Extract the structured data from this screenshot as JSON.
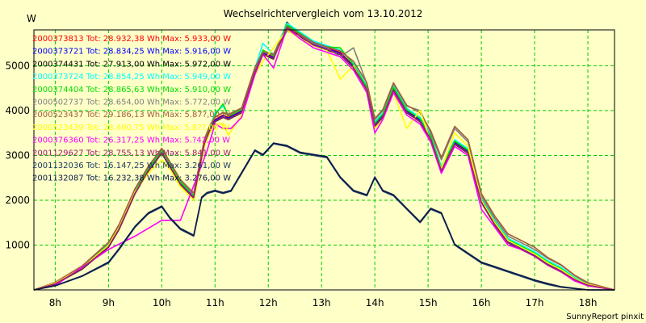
{
  "chart_data": {
    "type": "line",
    "title": "Wechselrichtervergleich vom 13.10.2012",
    "ylabel": "W",
    "credit": "SunnyReport pinxit",
    "x_ticks": [
      "8h",
      "9h",
      "10h",
      "11h",
      "12h",
      "13h",
      "14h",
      "15h",
      "16h",
      "17h",
      "18h"
    ],
    "y_ticks": [
      1000,
      2000,
      3000,
      4000,
      5000
    ],
    "xlim": [
      7.6,
      18.5
    ],
    "ylim": [
      0,
      5800
    ],
    "grid": true,
    "legend_position": "top-left",
    "series": [
      {
        "name": "2000373813 Tot: 28.932,38 Wh Max: 5.933,00 W",
        "color": "#ff0000",
        "x": [
          7.6,
          8.0,
          8.5,
          9.0,
          9.2,
          9.5,
          9.75,
          10.0,
          10.15,
          10.35,
          10.6,
          10.8,
          10.9,
          11.0,
          11.15,
          11.25,
          11.5,
          11.75,
          11.9,
          12.1,
          12.35,
          12.6,
          12.85,
          13.1,
          13.35,
          13.6,
          13.85,
          14.0,
          14.15,
          14.35,
          14.6,
          14.85,
          15.05,
          15.25,
          15.5,
          15.75,
          16.0,
          16.25,
          16.5,
          16.75,
          17.0,
          17.25,
          17.5,
          17.75,
          18.0,
          18.5
        ],
        "y": [
          0,
          150,
          500,
          1000,
          1400,
          2200,
          2700,
          3100,
          2800,
          2400,
          2100,
          3300,
          3600,
          3800,
          3900,
          3850,
          4000,
          4900,
          5300,
          5200,
          5900,
          5700,
          5500,
          5400,
          5300,
          5000,
          4500,
          3700,
          3900,
          4500,
          4000,
          3800,
          3400,
          2700,
          3300,
          3100,
          2000,
          1500,
          1100,
          950,
          800,
          600,
          450,
          250,
          120,
          0
        ]
      },
      {
        "name": "2000373721 Tot: 28.834,25 Wh Max: 5.916,00 W",
        "color": "#0000ff",
        "x": [
          7.6,
          8.0,
          8.5,
          9.0,
          9.2,
          9.5,
          9.75,
          10.0,
          10.15,
          10.35,
          10.6,
          10.8,
          10.9,
          11.0,
          11.15,
          11.25,
          11.5,
          11.75,
          11.9,
          12.1,
          12.35,
          12.6,
          12.85,
          13.1,
          13.35,
          13.6,
          13.85,
          14.0,
          14.15,
          14.35,
          14.6,
          14.85,
          15.05,
          15.25,
          15.5,
          15.75,
          16.0,
          16.25,
          16.5,
          16.75,
          17.0,
          17.25,
          17.5,
          17.75,
          18.0,
          18.5
        ],
        "y": [
          0,
          140,
          480,
          980,
          1380,
          2180,
          2680,
          3080,
          2780,
          2380,
          2080,
          3280,
          3580,
          3780,
          3880,
          3830,
          3980,
          4880,
          5280,
          5180,
          5880,
          5680,
          5480,
          5380,
          5280,
          4980,
          4480,
          3680,
          3880,
          4480,
          3980,
          3780,
          3380,
          2680,
          3280,
          3080,
          1980,
          1480,
          1080,
          930,
          780,
          580,
          430,
          240,
          110,
          0
        ]
      },
      {
        "name": "2000374431 Tot: 27.913,00 Wh Max: 5.972,00 W",
        "color": "#000000",
        "x": [
          7.6,
          8.0,
          8.5,
          9.0,
          9.2,
          9.5,
          9.75,
          10.0,
          10.15,
          10.35,
          10.6,
          10.8,
          10.9,
          11.0,
          11.15,
          11.25,
          11.5,
          11.75,
          11.9,
          12.1,
          12.35,
          12.6,
          12.85,
          13.1,
          13.35,
          13.6,
          13.85,
          14.0,
          14.15,
          14.35,
          14.6,
          14.85,
          15.05,
          15.25,
          15.5,
          15.75,
          16.0,
          16.25,
          16.5,
          16.75,
          17.0,
          17.25,
          17.5,
          17.75,
          18.0,
          18.5
        ],
        "y": [
          0,
          130,
          460,
          950,
          1350,
          2150,
          2650,
          3050,
          2750,
          2350,
          2050,
          3250,
          3550,
          3750,
          3850,
          3800,
          3950,
          4850,
          5250,
          5150,
          5970,
          5650,
          5450,
          5350,
          5250,
          4950,
          4450,
          3650,
          3850,
          4450,
          3950,
          3750,
          3350,
          2650,
          3250,
          3050,
          1950,
          1450,
          1050,
          900,
          750,
          550,
          400,
          220,
          100,
          0
        ]
      },
      {
        "name": "2000373724 Tot: 28.854,25 Wh Max: 5.949,00 W",
        "color": "#00ffff",
        "x": [
          7.6,
          8.0,
          8.5,
          9.0,
          9.2,
          9.5,
          9.75,
          10.0,
          10.15,
          10.35,
          10.6,
          10.8,
          10.9,
          11.0,
          11.15,
          11.25,
          11.5,
          11.75,
          11.9,
          12.1,
          12.35,
          12.6,
          12.85,
          13.1,
          13.35,
          13.6,
          13.85,
          14.0,
          14.15,
          14.35,
          14.6,
          14.85,
          15.05,
          15.25,
          15.5,
          15.75,
          16.0,
          16.25,
          16.5,
          16.75,
          17.0,
          17.25,
          17.5,
          17.75,
          18.0,
          18.5
        ],
        "y": [
          0,
          150,
          510,
          1010,
          1410,
          2210,
          2710,
          3110,
          2810,
          2410,
          2110,
          3310,
          3610,
          3950,
          4100,
          3900,
          4050,
          4950,
          5500,
          5250,
          5949,
          5750,
          5550,
          5450,
          5350,
          5050,
          4550,
          3750,
          3950,
          4550,
          4050,
          3850,
          3450,
          2750,
          3350,
          3150,
          2050,
          1550,
          1150,
          1000,
          850,
          650,
          500,
          280,
          130,
          0
        ]
      },
      {
        "name": "2000374404 Tot: 28.865,63 Wh Max: 5.910,00 W",
        "color": "#00e000",
        "x": [
          7.6,
          8.0,
          8.5,
          9.0,
          9.2,
          9.5,
          9.75,
          10.0,
          10.15,
          10.35,
          10.6,
          10.8,
          10.9,
          11.0,
          11.15,
          11.25,
          11.5,
          11.75,
          11.9,
          12.1,
          12.35,
          12.6,
          12.85,
          13.1,
          13.35,
          13.6,
          13.85,
          14.0,
          14.15,
          14.35,
          14.6,
          14.85,
          15.05,
          15.25,
          15.5,
          15.75,
          16.0,
          16.25,
          16.5,
          16.75,
          17.0,
          17.25,
          17.5,
          17.75,
          18.0,
          18.5
        ],
        "y": [
          0,
          145,
          505,
          1005,
          1405,
          2205,
          2705,
          3105,
          2805,
          2405,
          2105,
          3305,
          3605,
          3900,
          4150,
          3880,
          4020,
          4920,
          5350,
          5220,
          5910,
          5720,
          5520,
          5420,
          5400,
          5020,
          4520,
          3720,
          3920,
          4520,
          4020,
          3820,
          3420,
          2720,
          3320,
          3120,
          2020,
          1520,
          1120,
          970,
          820,
          620,
          470,
          260,
          120,
          0
        ]
      },
      {
        "name": "2000502737 Tot: 28.654,00 Wh Max: 5.772,00 W",
        "color": "#808080",
        "x": [
          7.6,
          8.0,
          8.5,
          9.0,
          9.2,
          9.5,
          9.75,
          10.0,
          10.15,
          10.35,
          10.6,
          10.8,
          10.9,
          11.0,
          11.15,
          11.25,
          11.5,
          11.75,
          11.9,
          12.1,
          12.35,
          12.6,
          12.85,
          13.1,
          13.35,
          13.6,
          13.85,
          14.0,
          14.15,
          14.35,
          14.6,
          14.85,
          15.05,
          15.25,
          15.5,
          15.75,
          16.0,
          16.25,
          16.5,
          16.75,
          17.0,
          17.25,
          17.5,
          17.75,
          18.0,
          18.5
        ],
        "y": [
          0,
          160,
          520,
          1050,
          1450,
          2250,
          2750,
          3150,
          2850,
          2450,
          2150,
          3350,
          3650,
          3850,
          3950,
          3900,
          4050,
          4950,
          5300,
          5250,
          5772,
          5680,
          5500,
          5400,
          5200,
          5400,
          4600,
          3800,
          4000,
          4600,
          4100,
          4000,
          3500,
          2900,
          3600,
          3300,
          2100,
          1600,
          1200,
          1050,
          900,
          700,
          550,
          320,
          150,
          0
        ]
      },
      {
        "name": "2000523437 Tot: 29.186,13 Wh Max: 5.87?,00 W",
        "color": "#a0603c",
        "x": [
          7.6,
          8.0,
          8.5,
          9.0,
          9.2,
          9.5,
          9.75,
          10.0,
          10.15,
          10.35,
          10.6,
          10.8,
          10.9,
          11.0,
          11.15,
          11.25,
          11.5,
          11.75,
          11.9,
          12.1,
          12.35,
          12.6,
          12.85,
          13.1,
          13.35,
          13.6,
          13.85,
          14.0,
          14.15,
          14.35,
          14.6,
          14.85,
          15.05,
          15.25,
          15.5,
          15.75,
          16.0,
          16.25,
          16.5,
          16.75,
          17.0,
          17.25,
          17.5,
          17.75,
          18.0,
          18.5
        ],
        "y": [
          0,
          170,
          530,
          1060,
          1460,
          2260,
          2760,
          3160,
          2860,
          2460,
          2160,
          3360,
          3660,
          3860,
          3960,
          3910,
          4060,
          4960,
          5310,
          5260,
          5870,
          5700,
          5520,
          5420,
          5330,
          5100,
          4620,
          3820,
          4020,
          4620,
          4120,
          3950,
          3550,
          2950,
          3650,
          3350,
          2150,
          1650,
          1250,
          1100,
          950,
          720,
          560,
          330,
          160,
          0
        ]
      },
      {
        "name": "2000523439 Tot: 28.400,75 Wh Max: 5.8??,00 W",
        "color": "#ffff00",
        "x": [
          7.6,
          8.0,
          8.5,
          9.0,
          9.2,
          9.5,
          9.75,
          10.0,
          10.15,
          10.35,
          10.6,
          10.8,
          10.9,
          11.0,
          11.15,
          11.25,
          11.5,
          11.75,
          11.9,
          12.1,
          12.35,
          12.6,
          12.85,
          13.1,
          13.35,
          13.6,
          13.85,
          14.0,
          14.15,
          14.35,
          14.6,
          14.85,
          15.05,
          15.25,
          15.5,
          15.75,
          16.0,
          16.25,
          16.5,
          16.75,
          17.0,
          17.25,
          17.5,
          17.75,
          18.0,
          18.5
        ],
        "y": [
          0,
          150,
          490,
          990,
          1390,
          2190,
          2600,
          2900,
          2700,
          2300,
          2000,
          3200,
          3500,
          3700,
          3700,
          3450,
          3900,
          4800,
          5100,
          5400,
          5800,
          5600,
          5450,
          5350,
          4700,
          5000,
          4400,
          3600,
          3800,
          4400,
          3600,
          4000,
          3300,
          2700,
          3500,
          3200,
          2000,
          1500,
          1100,
          950,
          800,
          600,
          450,
          250,
          120,
          0
        ]
      },
      {
        "name": "2000376360 Tot: 26.317,25 Wh Max: 5.?42,00 W",
        "color": "#ff00ff",
        "x": [
          7.6,
          8.0,
          8.5,
          9.0,
          9.5,
          10.0,
          10.35,
          10.85,
          11.0,
          11.15,
          11.3,
          11.5,
          11.75,
          11.9,
          12.1,
          12.35,
          12.6,
          12.85,
          13.1,
          13.35,
          13.6,
          13.85,
          14.0,
          14.15,
          14.35,
          14.6,
          14.85,
          15.05,
          15.25,
          15.5,
          15.75,
          16.0,
          16.25,
          16.5,
          16.75,
          17.0,
          17.25,
          17.5,
          17.75,
          18.0,
          18.5
        ],
        "y": [
          0,
          100,
          500,
          900,
          1200,
          1550,
          1550,
          3100,
          3700,
          3600,
          3600,
          3850,
          4800,
          5250,
          4950,
          5842,
          5600,
          5400,
          5300,
          5200,
          4900,
          4400,
          3500,
          3800,
          4400,
          3900,
          3700,
          3300,
          2600,
          3200,
          3000,
          1800,
          1400,
          1000,
          900,
          750,
          550,
          400,
          200,
          90,
          0
        ]
      },
      {
        "name": "2001129627 Tot: 28.755,13 Wh Max: 5.841,00 W",
        "color": "#a02070",
        "x": [
          7.6,
          8.0,
          8.5,
          9.0,
          9.2,
          9.5,
          9.75,
          10.0,
          10.15,
          10.35,
          10.6,
          10.8,
          10.9,
          11.0,
          11.15,
          11.25,
          11.5,
          11.75,
          11.9,
          12.1,
          12.35,
          12.6,
          12.85,
          13.1,
          13.35,
          13.6,
          13.85,
          14.0,
          14.15,
          14.35,
          14.6,
          14.85,
          15.05,
          15.25,
          15.5,
          15.75,
          16.0,
          16.25,
          16.5,
          16.75,
          17.0,
          17.25,
          17.5,
          17.75,
          18.0,
          18.5
        ],
        "y": [
          0,
          135,
          470,
          960,
          1360,
          2160,
          2660,
          3060,
          2760,
          2360,
          2060,
          3260,
          3560,
          3760,
          3860,
          3810,
          3960,
          4860,
          5260,
          5160,
          5841,
          5660,
          5460,
          5360,
          5260,
          4960,
          4460,
          3660,
          3860,
          4460,
          3960,
          3760,
          3360,
          2660,
          3260,
          3060,
          1960,
          1460,
          1060,
          910,
          760,
          560,
          410,
          230,
          105,
          0
        ]
      },
      {
        "name": "2001132036 Tot: 16.147,25 Wh Max: 3.261,00 W",
        "color": "#1f3a60",
        "x": [
          7.6,
          8.0,
          8.5,
          9.0,
          9.2,
          9.5,
          9.75,
          10.0,
          10.15,
          10.35,
          10.6,
          10.75,
          10.85,
          11.0,
          11.15,
          11.3,
          11.5,
          11.75,
          11.9,
          12.1,
          12.35,
          12.6,
          12.85,
          13.1,
          13.35,
          13.6,
          13.85,
          14.0,
          14.15,
          14.35,
          14.6,
          14.85,
          15.05,
          15.25,
          15.5,
          15.75,
          16.0,
          16.25,
          16.5,
          16.75,
          17.0,
          17.25,
          17.5,
          17.75,
          18.0,
          18.5
        ],
        "y": [
          0,
          90,
          300,
          600,
          900,
          1400,
          1700,
          1850,
          1600,
          1350,
          1200,
          2050,
          2150,
          2200,
          2150,
          2200,
          2600,
          3100,
          3000,
          3261,
          3200,
          3050,
          3000,
          2950,
          2500,
          2200,
          2100,
          2500,
          2200,
          2100,
          1800,
          1500,
          1800,
          1700,
          1000,
          800,
          600,
          500,
          400,
          300,
          200,
          120,
          60,
          30,
          0,
          0
        ]
      },
      {
        "name": "2001132087 Tot: 16.232,38 Wh Max: 3.276,00 W",
        "color": "#0a1a4a",
        "x": [
          7.6,
          8.0,
          8.5,
          9.0,
          9.2,
          9.5,
          9.75,
          10.0,
          10.15,
          10.35,
          10.6,
          10.75,
          10.85,
          11.0,
          11.15,
          11.3,
          11.5,
          11.75,
          11.9,
          12.1,
          12.35,
          12.6,
          12.85,
          13.1,
          13.35,
          13.6,
          13.85,
          14.0,
          14.15,
          14.35,
          14.6,
          14.85,
          15.05,
          15.25,
          15.5,
          15.75,
          16.0,
          16.25,
          16.5,
          16.75,
          17.0,
          17.25,
          17.5,
          17.75,
          18.0,
          18.5
        ],
        "y": [
          0,
          95,
          310,
          620,
          920,
          1420,
          1720,
          1870,
          1620,
          1370,
          1220,
          2070,
          2170,
          2220,
          2170,
          2220,
          2620,
          3120,
          3020,
          3276,
          3220,
          3070,
          3020,
          2970,
          2520,
          2220,
          2120,
          2520,
          2220,
          2120,
          1820,
          1520,
          1820,
          1720,
          1020,
          820,
          620,
          520,
          420,
          320,
          220,
          140,
          70,
          35,
          0,
          0
        ]
      }
    ]
  }
}
